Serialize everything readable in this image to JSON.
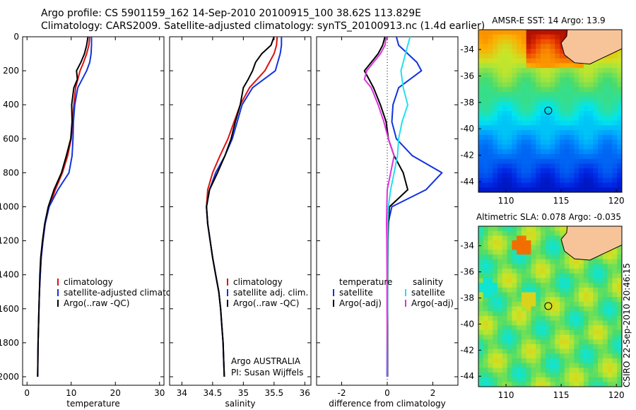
{
  "title": {
    "line1": "Argo profile: CS 5901159_162 14-Sep-2010 20100915_100 38.62S 113.829E",
    "line2": "Climatology: CARS2009. Satellite-adjusted climatology: synTS_20100913.nc (1.4d earlier)"
  },
  "credit": "CSIRO 22-Sep-2010 20:46:15",
  "colors": {
    "red": "#dd1111",
    "blue": "#1133dd",
    "black": "#000000",
    "cyan": "#22e0ee",
    "magenta": "#dd33dd"
  },
  "chart_data": [
    {
      "type": "line",
      "name": "temperature",
      "xlabel": "temperature",
      "ylabel": "",
      "xlim": [
        -1,
        31
      ],
      "ylim": [
        2050,
        0
      ],
      "xticks": [
        "0",
        "10",
        "20",
        "30"
      ],
      "yticks": [
        "0",
        "200",
        "400",
        "600",
        "800",
        "1000",
        "1200",
        "1400",
        "1600",
        "1800",
        "2000"
      ],
      "legend": [
        "climatology",
        "satellite-adjusted climatology",
        "Argo(..raw -QC)"
      ],
      "series": [
        {
          "name": "climatology",
          "color": "red",
          "depth": [
            0,
            50,
            100,
            150,
            200,
            300,
            400,
            500,
            600,
            700,
            800,
            900,
            1000,
            1100,
            1200,
            1300,
            1400,
            1500,
            1600,
            1700,
            1800,
            1900,
            2000
          ],
          "values": [
            14.2,
            14,
            13.5,
            12.8,
            12,
            11,
            10.6,
            10.3,
            10,
            9.2,
            8,
            6.4,
            5,
            4.1,
            3.6,
            3.2,
            3,
            2.8,
            2.7,
            2.6,
            2.5,
            2.45,
            2.4
          ]
        },
        {
          "name": "satellite-adjusted climatology",
          "color": "blue",
          "depth": [
            0,
            50,
            100,
            150,
            200,
            300,
            400,
            500,
            600,
            700,
            800,
            900,
            1000,
            1100,
            1200,
            1300,
            1400,
            1500,
            1600,
            1700,
            1800,
            1900,
            2000
          ],
          "values": [
            14.6,
            14.6,
            14.5,
            14.2,
            13.5,
            11.5,
            10.8,
            10.5,
            10.4,
            10.2,
            9.5,
            7,
            5,
            4.1,
            3.6,
            3.2,
            3,
            2.8,
            2.7,
            2.6,
            2.5,
            2.45,
            2.4
          ]
        },
        {
          "name": "Argo(..raw -QC)",
          "color": "black",
          "depth": [
            0,
            50,
            100,
            150,
            200,
            250,
            300,
            400,
            500,
            600,
            700,
            800,
            900,
            1000,
            1100,
            1200,
            1300,
            1400,
            1500,
            1600,
            1700,
            1800,
            1900,
            2000
          ],
          "values": [
            13.8,
            13.5,
            13,
            12.2,
            11.2,
            11.4,
            10.6,
            10.1,
            10.2,
            9.9,
            8.9,
            7.8,
            6.1,
            4.8,
            4,
            3.5,
            3.1,
            2.9,
            2.8,
            2.7,
            2.6,
            2.5,
            2.45,
            2.4
          ]
        }
      ]
    },
    {
      "type": "line",
      "name": "salinity",
      "xlabel": "salinity",
      "ylabel": "",
      "xlim": [
        33.8,
        36.1
      ],
      "ylim": [
        2050,
        0
      ],
      "xticks": [
        "34",
        "34.5",
        "35",
        "35.5",
        "36"
      ],
      "legend": [
        "climatology",
        "satellite adj. clim.",
        "Argo(..raw -QC)"
      ],
      "annotation": [
        "Argo AUSTRALIA",
        "PI: Susan Wijffels"
      ],
      "series": [
        {
          "name": "climatology",
          "color": "red",
          "depth": [
            0,
            50,
            100,
            200,
            300,
            400,
            500,
            600,
            700,
            800,
            900,
            1000,
            1100,
            1200,
            1300,
            1400,
            1500,
            1600,
            1700,
            1800,
            1900,
            2000
          ],
          "values": [
            35.55,
            35.54,
            35.5,
            35.35,
            35.1,
            34.95,
            34.85,
            34.75,
            34.62,
            34.5,
            34.42,
            34.4,
            34.42,
            34.46,
            34.5,
            34.55,
            34.6,
            34.63,
            34.65,
            34.67,
            34.68,
            34.69
          ]
        },
        {
          "name": "satellite adj. clim.",
          "color": "blue",
          "depth": [
            0,
            50,
            100,
            200,
            300,
            400,
            500,
            600,
            700,
            800,
            900,
            1000,
            1100,
            1200,
            1300,
            1400,
            1500,
            1600,
            1700,
            1800,
            1900,
            2000
          ],
          "values": [
            35.62,
            35.62,
            35.6,
            35.52,
            35.15,
            34.98,
            34.9,
            34.82,
            34.7,
            34.55,
            34.45,
            34.4,
            34.42,
            34.46,
            34.5,
            34.55,
            34.6,
            34.63,
            34.65,
            34.67,
            34.68,
            34.69
          ]
        },
        {
          "name": "Argo(..raw -QC)",
          "color": "black",
          "depth": [
            0,
            50,
            100,
            150,
            200,
            250,
            300,
            400,
            500,
            600,
            700,
            800,
            900,
            1000,
            1100,
            1200,
            1300,
            1400,
            1500,
            1600,
            1700,
            1800,
            1900,
            2000
          ],
          "values": [
            35.5,
            35.45,
            35.3,
            35.2,
            35.15,
            35.08,
            35.0,
            34.95,
            34.87,
            34.8,
            34.7,
            34.58,
            34.45,
            34.4,
            34.42,
            34.46,
            34.5,
            34.55,
            34.6,
            34.63,
            34.65,
            34.67,
            34.68,
            34.69
          ]
        }
      ]
    },
    {
      "type": "line",
      "name": "difference",
      "xlabel": "difference from climatology",
      "ylabel": "",
      "xlim": [
        -3.1,
        3.1
      ],
      "ylim": [
        2050,
        0
      ],
      "xticks": [
        "-2",
        "0",
        "2"
      ],
      "legend_headers": [
        "temperature",
        "salinity"
      ],
      "legend": [
        "satellite",
        "Argo(-adj)",
        "satellite",
        "Argo(-adj)"
      ],
      "series": [
        {
          "name": "temperature satellite",
          "color": "blue",
          "depth": [
            0,
            50,
            100,
            150,
            200,
            300,
            400,
            500,
            600,
            700,
            800,
            900,
            1000,
            1100,
            1200,
            1400,
            1600,
            1800,
            2000
          ],
          "values": [
            0.4,
            0.5,
            0.9,
            1.3,
            1.5,
            0.5,
            0.25,
            0.2,
            0.4,
            1.1,
            2.4,
            1.7,
            0.2,
            0.03,
            0.02,
            0.01,
            0.01,
            0.01,
            0.01
          ]
        },
        {
          "name": "temperature Argo(-adj)",
          "color": "black",
          "depth": [
            0,
            50,
            100,
            150,
            200,
            250,
            300,
            400,
            500,
            600,
            700,
            800,
            900,
            1000,
            1100,
            1200,
            1400,
            1600,
            1800,
            2000
          ],
          "values": [
            -0.1,
            -0.2,
            -0.4,
            -0.7,
            -1.0,
            -0.8,
            -0.6,
            -0.3,
            -0.05,
            0.05,
            0.3,
            0.7,
            0.9,
            0.1,
            0.05,
            0.03,
            0.02,
            0.01,
            0.01,
            0.01
          ]
        },
        {
          "name": "salinity satellite",
          "color": "cyan",
          "depth": [
            0,
            50,
            100,
            200,
            300,
            400,
            500,
            600,
            700,
            800,
            900,
            1000,
            1100,
            1200,
            1400,
            1600,
            1800,
            2000
          ],
          "values": [
            1.0,
            0.9,
            0.8,
            0.6,
            0.7,
            0.9,
            0.65,
            0.5,
            0.45,
            0.3,
            0.15,
            0.05,
            0.02,
            0.02,
            0.01,
            0.01,
            -0.01,
            -0.02
          ]
        },
        {
          "name": "salinity Argo(-adj)",
          "color": "magenta",
          "depth": [
            0,
            50,
            100,
            150,
            200,
            250,
            300,
            400,
            500,
            600,
            700,
            800,
            900,
            1000,
            1100,
            1200,
            1400,
            1600,
            1800,
            2000
          ],
          "values": [
            -0.05,
            -0.1,
            -0.3,
            -0.6,
            -0.9,
            -1.0,
            -0.7,
            -0.4,
            -0.15,
            0.05,
            0.3,
            0.15,
            0.0,
            -0.02,
            -0.03,
            -0.02,
            -0.01,
            -0.01,
            0.0,
            0.0
          ]
        }
      ]
    },
    {
      "type": "heatmap",
      "name": "sst_map",
      "title": "AMSR-E SST: 14  Argo: 13.9",
      "xlim": [
        107.5,
        120.5
      ],
      "ylim": [
        -44.8,
        -32.5
      ],
      "xticks": [
        "110",
        "115",
        "120"
      ],
      "yticks": [
        "-34",
        "-36",
        "-38",
        "-40",
        "-42",
        "-44"
      ],
      "marker": {
        "lon": 113.83,
        "lat": -38.62
      }
    },
    {
      "type": "heatmap",
      "name": "sla_map",
      "title": "Altimetric SLA: 0.078  Argo: -0.035",
      "xlim": [
        107.5,
        120.5
      ],
      "ylim": [
        -44.8,
        -32.5
      ],
      "xticks": [
        "110",
        "115",
        "120"
      ],
      "yticks": [
        "-34",
        "-36",
        "-38",
        "-40",
        "-42",
        "-44"
      ],
      "marker": {
        "lon": 113.83,
        "lat": -38.62
      }
    }
  ]
}
